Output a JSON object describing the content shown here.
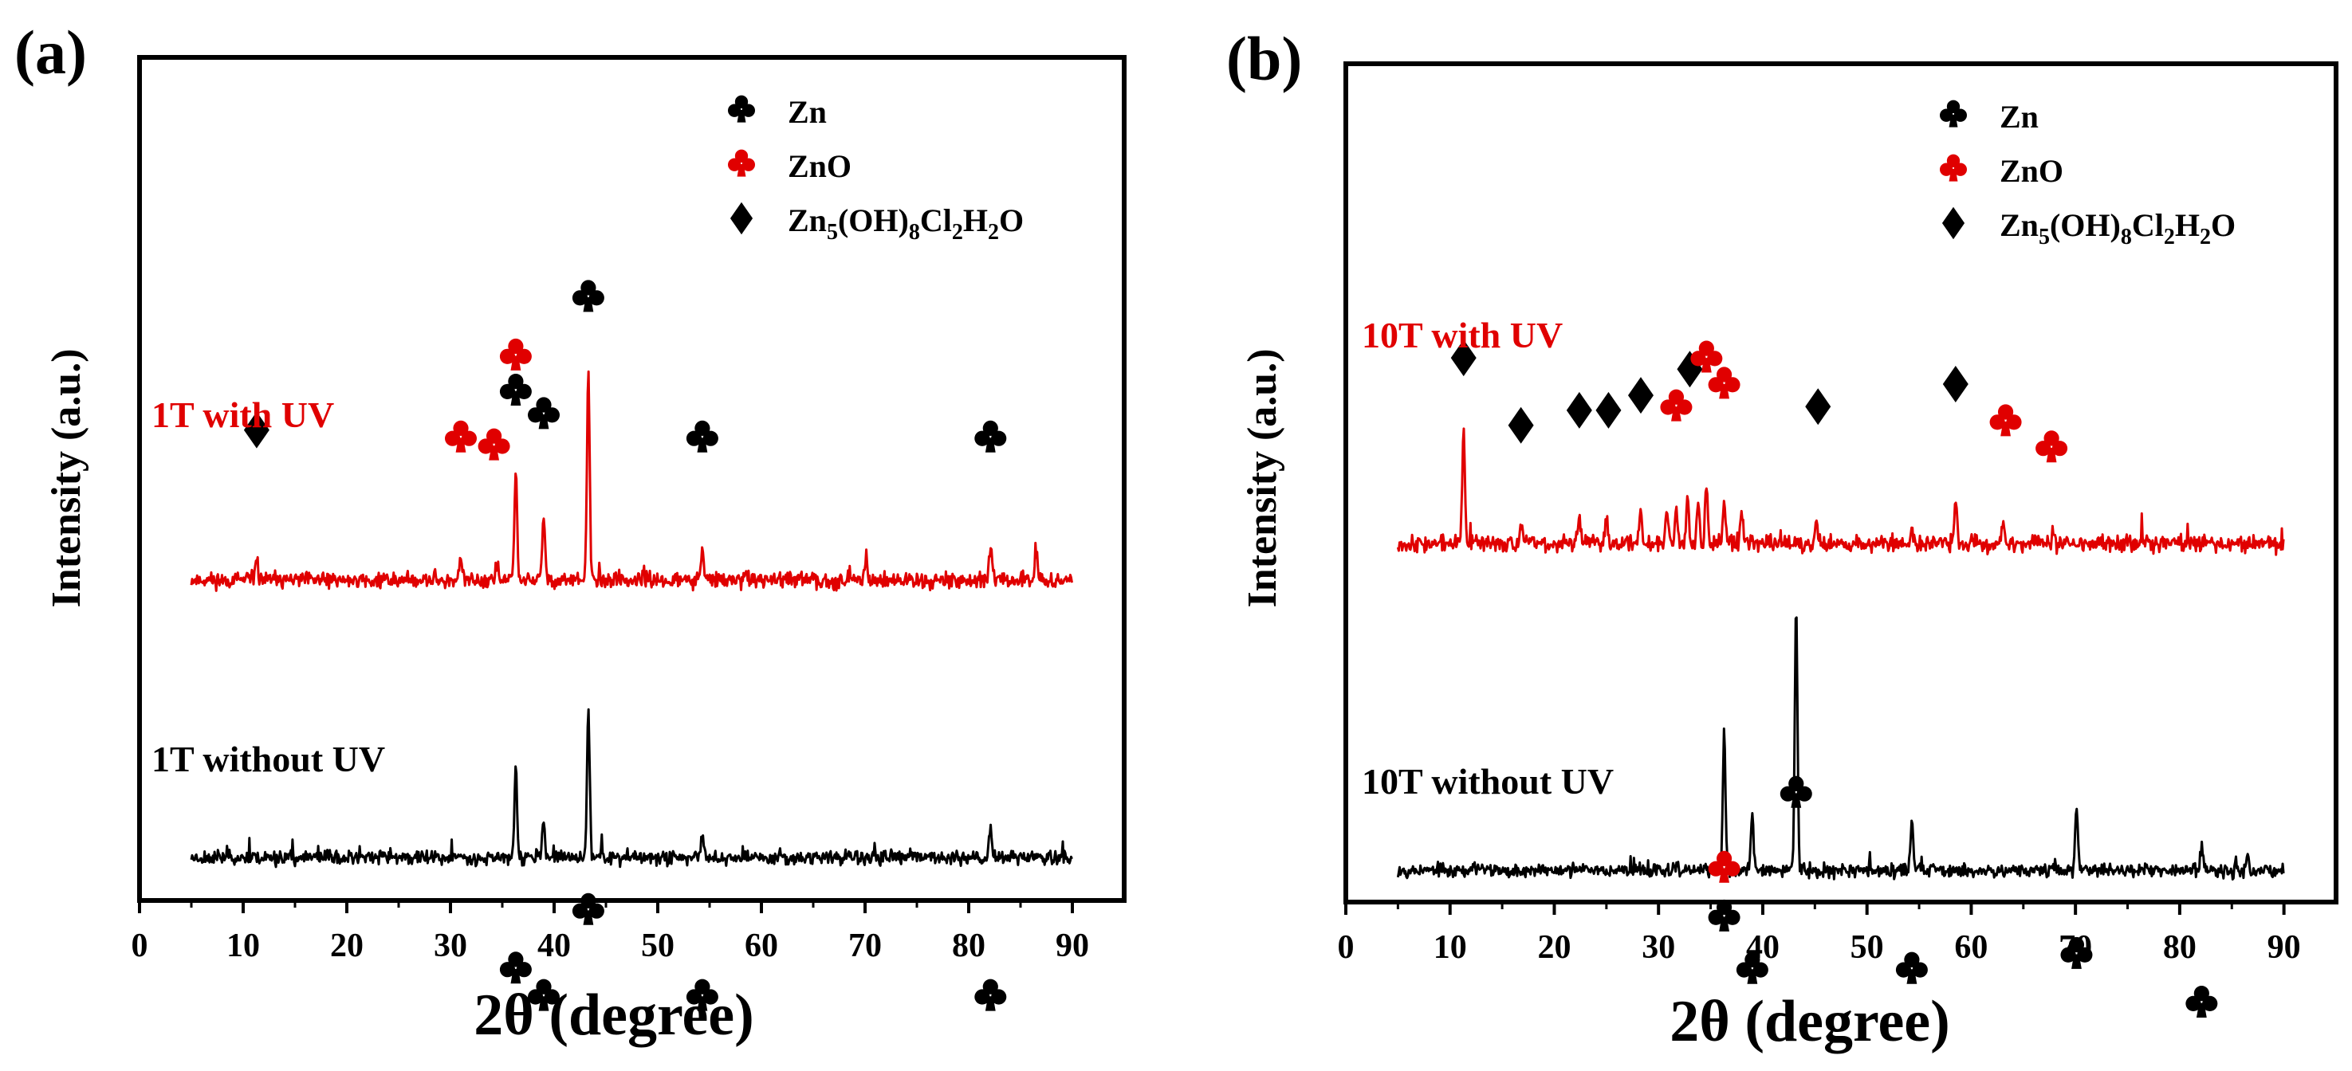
{
  "chart_data": [
    {
      "type": "line",
      "panel_label": "(a)",
      "ylabel": "Intensity (a.u.)",
      "xlabel": "2θ (degree)",
      "xlim": [
        0,
        95
      ],
      "xticks": [
        0,
        10,
        20,
        30,
        40,
        50,
        60,
        70,
        80,
        90
      ],
      "colors": {
        "Zn": "#000000",
        "ZnO": "#e00000"
      },
      "legend": [
        {
          "symbol": "club",
          "color": "#000000",
          "base": "Zn",
          "sub": "",
          "tail": ""
        },
        {
          "symbol": "club",
          "color": "#e00000",
          "base": "ZnO",
          "sub": "",
          "tail": ""
        },
        {
          "symbol": "diamond",
          "color": "#000000",
          "base": "Zn",
          "sub": "5",
          "tail": "(OH)",
          "sub2": "8",
          "tail2": "Cl",
          "sub3": "2",
          "tail3": "H",
          "sub4": "2",
          "tail4": "O"
        }
      ],
      "series": [
        {
          "name": "1T with UV",
          "color": "#e00000",
          "baseline": 8,
          "noise": 2.0,
          "seed": 11,
          "x_range": [
            5,
            90
          ],
          "peaks": [
            [
              11.3,
              6
            ],
            [
              31.0,
              5
            ],
            [
              34.5,
              4
            ],
            [
              36.3,
              28
            ],
            [
              39.0,
              17
            ],
            [
              43.3,
              52
            ],
            [
              54.3,
              8
            ],
            [
              70.1,
              6
            ],
            [
              82.1,
              8
            ],
            [
              86.5,
              7
            ]
          ],
          "markers": [
            {
              "x": 11.3,
              "type": "diamond",
              "color": "#000000",
              "level": 36
            },
            {
              "x": 31.0,
              "type": "club",
              "color": "#e00000",
              "level": 34
            },
            {
              "x": 34.2,
              "type": "club",
              "color": "#e00000",
              "level": 32
            },
            {
              "x": 36.3,
              "type": "club",
              "color": "#000000",
              "level": 46
            },
            {
              "x": 36.3,
              "type": "club",
              "color": "#e00000",
              "level": 55
            },
            {
              "x": 39.0,
              "type": "club",
              "color": "#000000",
              "level": 40
            },
            {
              "x": 43.3,
              "type": "club",
              "color": "#000000",
              "level": 70
            },
            {
              "x": 54.3,
              "type": "club",
              "color": "#000000",
              "level": 34
            },
            {
              "x": 82.1,
              "type": "club",
              "color": "#000000",
              "level": 34
            }
          ]
        },
        {
          "name": "1T without UV",
          "color": "#000000",
          "baseline": -60,
          "noise": 1.8,
          "seed": 23,
          "x_range": [
            5,
            90
          ],
          "peaks": [
            [
              36.3,
              22
            ],
            [
              39.0,
              9
            ],
            [
              43.3,
              37
            ],
            [
              54.3,
              6
            ],
            [
              82.1,
              8
            ]
          ],
          "markers": [
            {
              "x": 36.3,
              "type": "club",
              "color": "#000000",
              "level": -31
            },
            {
              "x": 39.0,
              "type": "club",
              "color": "#000000",
              "level": -38
            },
            {
              "x": 43.3,
              "type": "club",
              "color": "#000000",
              "level": -16
            },
            {
              "x": 54.3,
              "type": "club",
              "color": "#000000",
              "level": -38
            },
            {
              "x": 82.1,
              "type": "club",
              "color": "#000000",
              "level": -38
            }
          ]
        }
      ]
    },
    {
      "type": "line",
      "panel_label": "(b)",
      "ylabel": "Intensity (a.u.)",
      "xlabel": "2θ (degree)",
      "xlim": [
        0,
        95
      ],
      "xticks": [
        0,
        10,
        20,
        30,
        40,
        50,
        60,
        70,
        80,
        90
      ],
      "colors": {
        "Zn": "#000000",
        "ZnO": "#e00000"
      },
      "legend": [
        {
          "symbol": "club",
          "color": "#000000",
          "base": "Zn",
          "sub": "",
          "tail": ""
        },
        {
          "symbol": "club",
          "color": "#e00000",
          "base": "ZnO",
          "sub": "",
          "tail": ""
        },
        {
          "symbol": "diamond",
          "color": "#000000",
          "base": "Zn",
          "sub": "5",
          "tail": "(OH)",
          "sub2": "8",
          "tail2": "Cl",
          "sub3": "2",
          "tail3": "H",
          "sub4": "2",
          "tail4": "O"
        }
      ],
      "series": [
        {
          "name": "10T with UV",
          "color": "#e00000",
          "baseline": 10,
          "noise": 2.2,
          "seed": 37,
          "x_range": [
            5,
            90
          ],
          "peaks": [
            [
              11.3,
              30
            ],
            [
              16.8,
              5
            ],
            [
              22.4,
              8
            ],
            [
              25.0,
              7
            ],
            [
              28.3,
              9
            ],
            [
              30.8,
              10
            ],
            [
              31.7,
              9
            ],
            [
              32.8,
              14
            ],
            [
              33.8,
              12
            ],
            [
              34.6,
              16
            ],
            [
              36.3,
              12
            ],
            [
              38.0,
              8
            ],
            [
              45.1,
              6
            ],
            [
              54.3,
              4
            ],
            [
              58.5,
              11
            ],
            [
              63.1,
              6
            ],
            [
              67.9,
              4
            ]
          ],
          "markers": [
            {
              "x": 11.3,
              "type": "diamond",
              "color": "#000000",
              "level": 47
            },
            {
              "x": 16.8,
              "type": "diamond",
              "color": "#000000",
              "level": 29
            },
            {
              "x": 22.4,
              "type": "diamond",
              "color": "#000000",
              "level": 33
            },
            {
              "x": 25.2,
              "type": "diamond",
              "color": "#000000",
              "level": 33
            },
            {
              "x": 28.3,
              "type": "diamond",
              "color": "#000000",
              "level": 37
            },
            {
              "x": 31.7,
              "type": "club",
              "color": "#e00000",
              "level": 34
            },
            {
              "x": 33.0,
              "type": "diamond",
              "color": "#000000",
              "level": 44
            },
            {
              "x": 34.6,
              "type": "club",
              "color": "#e00000",
              "level": 47
            },
            {
              "x": 36.3,
              "type": "club",
              "color": "#e00000",
              "level": 40
            },
            {
              "x": 45.3,
              "type": "diamond",
              "color": "#000000",
              "level": 34
            },
            {
              "x": 58.5,
              "type": "diamond",
              "color": "#000000",
              "level": 40
            },
            {
              "x": 63.3,
              "type": "club",
              "color": "#e00000",
              "level": 30
            },
            {
              "x": 67.7,
              "type": "club",
              "color": "#e00000",
              "level": 23
            }
          ]
        },
        {
          "name": "10T without UV",
          "color": "#000000",
          "baseline": -60,
          "noise": 1.8,
          "seed": 53,
          "x_range": [
            5,
            90
          ],
          "peaks": [
            [
              36.3,
              36
            ],
            [
              39.0,
              14
            ],
            [
              43.2,
              69
            ],
            [
              54.3,
              14
            ],
            [
              70.1,
              17
            ],
            [
              82.1,
              7
            ],
            [
              86.5,
              4
            ]
          ],
          "markers": [
            {
              "x": 36.3,
              "type": "club",
              "color": "#000000",
              "level": -15
            },
            {
              "x": 36.3,
              "type": "club",
              "color": "#e00000",
              "level": -2
            },
            {
              "x": 39.0,
              "type": "club",
              "color": "#000000",
              "level": -29
            },
            {
              "x": 43.2,
              "type": "club",
              "color": "#000000",
              "level": 18
            },
            {
              "x": 54.3,
              "type": "club",
              "color": "#000000",
              "level": -29
            },
            {
              "x": 70.1,
              "type": "club",
              "color": "#000000",
              "level": -25
            },
            {
              "x": 82.1,
              "type": "club",
              "color": "#000000",
              "level": -38
            }
          ]
        }
      ]
    }
  ]
}
